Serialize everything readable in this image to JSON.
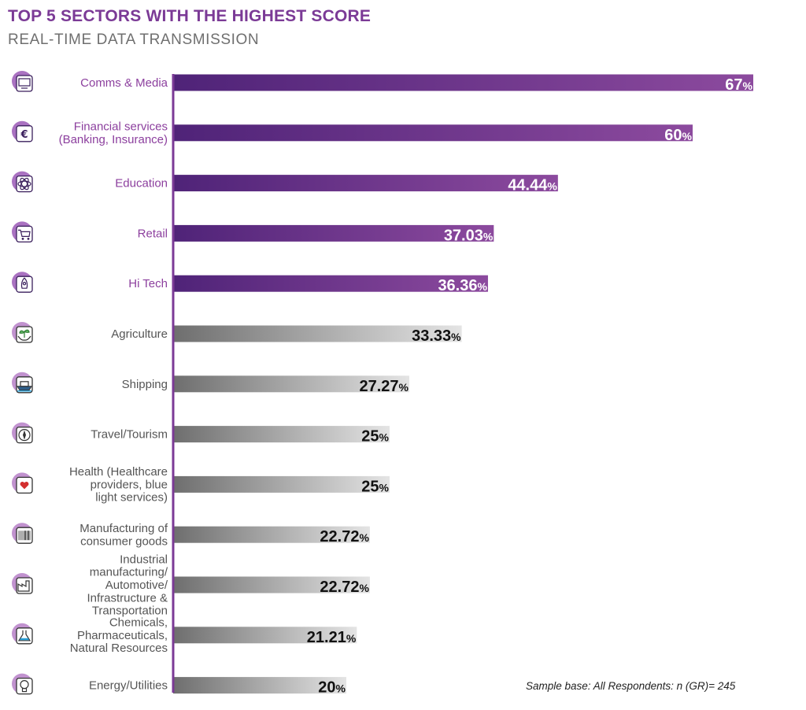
{
  "title": "TOP 5 SECTORS WITH THE HIGHEST SCORE",
  "subtitle": "REAL-TIME DATA TRANSMISSION",
  "footnote": "Sample base: All Respondents: n (GR)= 245",
  "colors": {
    "purple_dark": "#4f2378",
    "purple_light": "#8c4a9e",
    "grey_dark": "#6e6e6e",
    "grey_light": "#e4e4e4",
    "label_purple": "#8c3f9e",
    "label_grey": "#555555",
    "axis": "#7b3a96"
  },
  "chart_data": {
    "type": "bar",
    "orientation": "horizontal",
    "title": "TOP 5 SECTORS WITH THE HIGHEST SCORE",
    "subtitle": "REAL-TIME DATA TRANSMISSION",
    "xlim": [
      0,
      100
    ],
    "unit": "%",
    "highlight_top": 5,
    "categories": [
      {
        "lines": [
          "Comms & Media"
        ],
        "value": 67,
        "label": "67",
        "icon": "media-icon"
      },
      {
        "lines": [
          "Financial services",
          "(Banking, Insurance)"
        ],
        "value": 60,
        "label": "60",
        "icon": "euro-phone-icon"
      },
      {
        "lines": [
          "Education"
        ],
        "value": 44.44,
        "label": "44.44",
        "icon": "atom-icon"
      },
      {
        "lines": [
          "Retail"
        ],
        "value": 37.03,
        "label": "37.03",
        "icon": "shopping-cart-icon"
      },
      {
        "lines": [
          "Hi Tech"
        ],
        "value": 36.36,
        "label": "36.36",
        "icon": "rocket-icon"
      },
      {
        "lines": [
          "Agriculture"
        ],
        "value": 33.33,
        "label": "33.33",
        "icon": "plant-hands-icon"
      },
      {
        "lines": [
          "Shipping"
        ],
        "value": 27.27,
        "label": "27.27",
        "icon": "ship-icon"
      },
      {
        "lines": [
          "Travel/Tourism"
        ],
        "value": 25,
        "label": "25",
        "icon": "compass-icon"
      },
      {
        "lines": [
          "Health (Healthcare",
          "providers, blue",
          "light services)"
        ],
        "value": 25,
        "label": "25",
        "icon": "heart-document-icon"
      },
      {
        "lines": [
          "Manufacturing of",
          "consumer goods"
        ],
        "value": 22.72,
        "label": "22.72",
        "icon": "barcode-icon"
      },
      {
        "lines": [
          "Industrial",
          "manufacturing/",
          "Automotive/",
          "Infrastructure &",
          "Transportation"
        ],
        "value": 22.72,
        "label": "22.72",
        "icon": "factory-icon"
      },
      {
        "lines": [
          "Chemicals,",
          "Pharmaceuticals,",
          "Natural Resources"
        ],
        "value": 21.21,
        "label": "21.21",
        "icon": "flask-icon"
      },
      {
        "lines": [
          "Energy/Utilities"
        ],
        "value": 20,
        "label": "20",
        "icon": "lightbulb-icon"
      }
    ]
  }
}
